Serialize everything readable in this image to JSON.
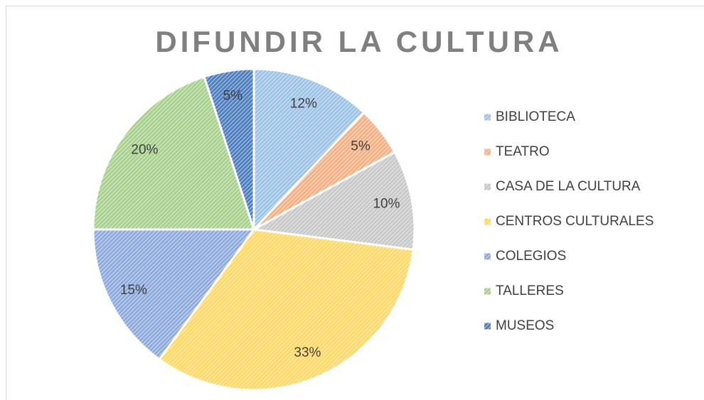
{
  "chart_data": {
    "type": "pie",
    "title": "DIFUNDIR LA CULTURA",
    "categories": [
      "BIBLIOTECA",
      "TEATRO",
      "CASA DE LA CULTURA",
      "CENTROS CULTURALES",
      "COLEGIOS",
      "TALLERES",
      "MUSEOS"
    ],
    "values": [
      12,
      5,
      10,
      33,
      15,
      20,
      5
    ],
    "value_labels": [
      "12%",
      "5%",
      "10%",
      "33%",
      "15%",
      "20%",
      "5%"
    ],
    "colors": [
      "#9dc3e6",
      "#f4b183",
      "#c9c9c9",
      "#ffd966",
      "#8faadc",
      "#a9d18e",
      "#4f7fbf"
    ],
    "legend": "right"
  }
}
